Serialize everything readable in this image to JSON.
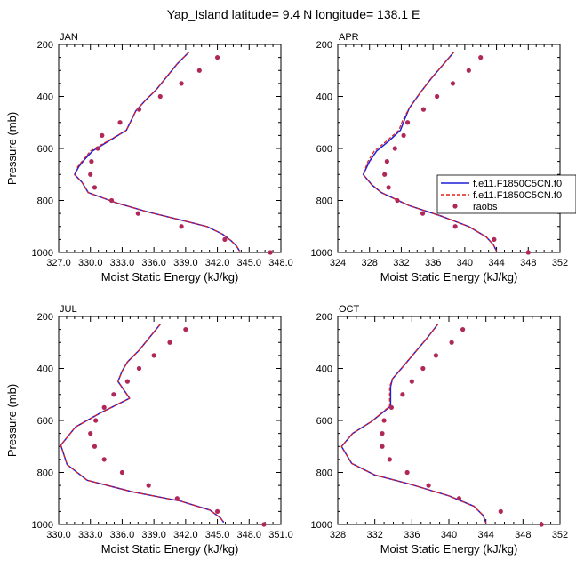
{
  "figure_title": "Yap_Island  latitude= 9.4 N longitude= 138.1 E",
  "legend": {
    "series": [
      {
        "label": "f.e11.F1850C5CN.f0",
        "style": "line",
        "color": "#1f1fd8"
      },
      {
        "label": "f.e11.F1850C5CN.f0",
        "style": "dashed",
        "color": "#e0201a"
      },
      {
        "label": "raobs",
        "style": "marker",
        "color": "#b0285a"
      }
    ]
  },
  "chart_data": [
    {
      "type": "line",
      "panel": "JAN",
      "title": "JAN",
      "xlabel": "Moist Static Energy (kJ/kg)",
      "ylabel": "Pressure (mb)",
      "xlim": [
        327.0,
        348.0
      ],
      "xticks": [
        "327.0",
        "330.0",
        "333.0",
        "336.0",
        "339.0",
        "342.0",
        "345.0",
        "348.0"
      ],
      "ylim": [
        200,
        1000
      ],
      "yticks": [
        "200",
        "400",
        "600",
        "800",
        "1000"
      ],
      "y_inverted": true,
      "series": [
        {
          "name": "f.e11.F1850C5CN.f0",
          "style": "solid",
          "x": [
            339.3,
            338.2,
            337.2,
            336.2,
            335.2,
            334.3,
            333.4,
            331.8,
            330.2,
            329.5,
            328.9,
            328.5,
            329.2,
            329.8,
            332.5,
            335.5,
            338.5,
            341.0,
            342.5,
            343.3,
            343.8,
            344.1
          ],
          "y": [
            230,
            275,
            325,
            375,
            415,
            455,
            530,
            570,
            610,
            640,
            670,
            700,
            730,
            770,
            810,
            845,
            875,
            900,
            930,
            955,
            975,
            995
          ]
        },
        {
          "name": "f.e11.F1850C5CN.f0",
          "style": "dashed",
          "x": [
            339.3,
            338.2,
            337.2,
            336.2,
            335.2,
            334.3,
            333.4,
            331.7,
            330.0,
            329.4,
            328.8,
            328.5,
            329.2,
            329.8,
            332.5,
            335.5,
            338.5,
            341.0,
            342.5,
            343.3,
            343.8,
            344.1
          ],
          "y": [
            230,
            275,
            325,
            375,
            415,
            455,
            530,
            570,
            610,
            640,
            670,
            700,
            730,
            770,
            810,
            845,
            875,
            900,
            930,
            955,
            975,
            995
          ]
        },
        {
          "name": "raobs",
          "style": "marker",
          "x": [
            342.0,
            340.3,
            338.6,
            336.6,
            334.6,
            332.8,
            331.1,
            330.7,
            330.1,
            330.0,
            330.4,
            332.0,
            334.5,
            338.6,
            342.7,
            347.0
          ],
          "y": [
            250,
            300,
            350,
            400,
            450,
            500,
            550,
            600,
            650,
            700,
            750,
            800,
            850,
            900,
            950,
            1000
          ]
        }
      ]
    },
    {
      "type": "line",
      "panel": "APR",
      "title": "APR",
      "xlabel": "Moist Static Energy (kJ/kg)",
      "ylabel": "",
      "xlim": [
        324,
        352
      ],
      "xticks": [
        "324",
        "328",
        "332",
        "336",
        "340",
        "344",
        "348",
        "352"
      ],
      "ylim": [
        200,
        1000
      ],
      "yticks": [
        "200",
        "400",
        "600",
        "800",
        "1000"
      ],
      "y_inverted": true,
      "series": [
        {
          "name": "f.e11.F1850C5CN.f0",
          "style": "solid",
          "x": [
            338.6,
            337.2,
            335.8,
            334.4,
            333.0,
            332.4,
            331.9,
            330.5,
            328.9,
            328.0,
            327.2,
            328.3,
            329.5,
            333.0,
            337.0,
            340.5,
            342.7,
            343.6,
            344.0
          ],
          "y": [
            230,
            280,
            330,
            385,
            445,
            490,
            530,
            570,
            610,
            650,
            700,
            740,
            770,
            820,
            860,
            900,
            940,
            970,
            995
          ]
        },
        {
          "name": "f.e11.F1850C5CN.f0",
          "style": "dashed",
          "x": [
            338.6,
            337.2,
            335.8,
            334.4,
            333.0,
            332.2,
            331.7,
            330.2,
            328.6,
            327.8,
            327.2,
            328.3,
            329.5,
            333.0,
            337.0,
            340.5,
            342.7,
            343.6,
            344.0
          ],
          "y": [
            230,
            280,
            330,
            385,
            445,
            490,
            530,
            570,
            610,
            650,
            700,
            740,
            770,
            820,
            860,
            900,
            940,
            970,
            995
          ]
        },
        {
          "name": "raobs",
          "style": "marker",
          "x": [
            342.0,
            340.5,
            338.5,
            336.5,
            334.8,
            332.8,
            332.3,
            331.2,
            330.2,
            329.9,
            330.4,
            331.5,
            334.7,
            338.8,
            343.7,
            348.0
          ],
          "y": [
            250,
            300,
            350,
            400,
            450,
            500,
            550,
            600,
            650,
            700,
            750,
            800,
            850,
            900,
            950,
            1000
          ]
        }
      ]
    },
    {
      "type": "line",
      "panel": "JUL",
      "title": "JUL",
      "xlabel": "Moist Static Energy (kJ/kg)",
      "ylabel": "Pressure (mb)",
      "xlim": [
        330.0,
        351.0
      ],
      "xticks": [
        "330.0",
        "333.0",
        "336.0",
        "339.0",
        "342.0",
        "345.0",
        "348.0",
        "351.0"
      ],
      "ylim": [
        200,
        1000
      ],
      "yticks": [
        "200",
        "400",
        "600",
        "800",
        "1000"
      ],
      "y_inverted": true,
      "series": [
        {
          "name": "f.e11.F1850C5CN.f0",
          "style": "solid",
          "x": [
            339.6,
            338.6,
            337.6,
            336.5,
            336.0,
            335.6,
            336.7,
            334.0,
            331.6,
            330.2,
            330.8,
            332.7,
            337.0,
            341.5,
            344.3,
            345.3,
            345.6
          ],
          "y": [
            230,
            280,
            330,
            375,
            410,
            450,
            515,
            570,
            625,
            695,
            770,
            830,
            875,
            910,
            945,
            975,
            992
          ]
        },
        {
          "name": "f.e11.F1850C5CN.f0",
          "style": "dashed",
          "x": [
            339.6,
            338.6,
            337.6,
            336.5,
            336.0,
            335.6,
            336.7,
            334.0,
            331.6,
            330.2,
            330.8,
            332.7,
            337.0,
            341.5,
            344.3,
            345.3,
            345.6
          ],
          "y": [
            230,
            280,
            330,
            375,
            410,
            450,
            515,
            570,
            625,
            695,
            770,
            830,
            875,
            910,
            945,
            975,
            992
          ]
        },
        {
          "name": "raobs",
          "style": "marker",
          "x": [
            342.0,
            340.5,
            339.0,
            337.6,
            336.5,
            335.2,
            334.3,
            333.5,
            333.0,
            333.4,
            334.3,
            336.0,
            338.5,
            341.2,
            345.0,
            349.4
          ],
          "y": [
            250,
            300,
            350,
            400,
            450,
            500,
            550,
            600,
            650,
            700,
            750,
            800,
            850,
            900,
            950,
            1000
          ]
        }
      ]
    },
    {
      "type": "line",
      "panel": "OCT",
      "title": "OCT",
      "xlabel": "Moist Static Energy (kJ/kg)",
      "ylabel": "",
      "xlim": [
        328,
        352
      ],
      "xticks": [
        "328",
        "332",
        "336",
        "340",
        "344",
        "348",
        "352"
      ],
      "ylim": [
        200,
        1000
      ],
      "yticks": [
        "200",
        "400",
        "600",
        "800",
        "1000"
      ],
      "y_inverted": true,
      "series": [
        {
          "name": "f.e11.F1850C5CN.f0",
          "style": "solid",
          "x": [
            338.8,
            337.6,
            336.3,
            335.0,
            333.9,
            333.7,
            333.7,
            331.6,
            329.6,
            328.4,
            329.5,
            332.0,
            335.8,
            340.0,
            342.7,
            343.7,
            344.0
          ],
          "y": [
            230,
            285,
            340,
            395,
            440,
            470,
            545,
            605,
            650,
            700,
            765,
            810,
            845,
            890,
            930,
            965,
            995
          ]
        },
        {
          "name": "f.e11.F1850C5CN.f0",
          "style": "dashed",
          "x": [
            338.8,
            337.6,
            336.3,
            335.0,
            333.9,
            333.6,
            333.6,
            331.6,
            329.6,
            328.4,
            329.5,
            332.0,
            335.8,
            340.0,
            342.7,
            343.7,
            344.0
          ],
          "y": [
            230,
            285,
            340,
            395,
            440,
            470,
            545,
            605,
            650,
            700,
            765,
            810,
            845,
            890,
            930,
            965,
            995
          ]
        },
        {
          "name": "raobs",
          "style": "marker",
          "x": [
            341.5,
            340.3,
            338.6,
            337.2,
            336.0,
            335.0,
            333.8,
            333.0,
            332.8,
            332.8,
            333.6,
            335.5,
            337.8,
            341.1,
            345.6,
            350.0
          ],
          "y": [
            250,
            300,
            350,
            400,
            450,
            500,
            550,
            600,
            650,
            700,
            750,
            800,
            850,
            900,
            950,
            1000
          ]
        }
      ]
    }
  ]
}
